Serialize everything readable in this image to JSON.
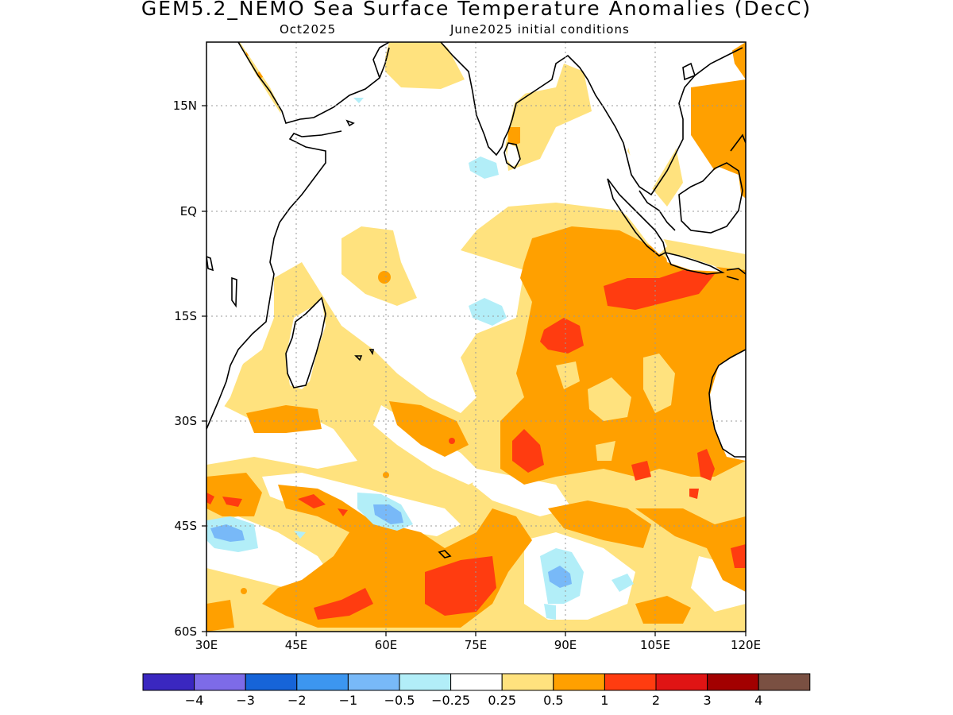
{
  "title": "GEM5.2_NEMO Sea Surface Temperature Anomalies (DecC)",
  "subtitle_month": "Oct2025",
  "subtitle_init": "June2025 initial conditions",
  "lat_labels": [
    "15N",
    "EQ",
    "15S",
    "30S",
    "45S",
    "60S"
  ],
  "lon_labels": [
    "30E",
    "45E",
    "60E",
    "75E",
    "90E",
    "105E",
    "120E"
  ],
  "colorbar": {
    "colors": [
      "#3a27c0",
      "#7d6be8",
      "#1664d8",
      "#3c96f0",
      "#78b9f8",
      "#b2eef8",
      "#ffffff",
      "#ffe27e",
      "#ffa000",
      "#ff3c10",
      "#e01414",
      "#a20000",
      "#7a5042"
    ],
    "labels": [
      "−4",
      "−3",
      "−2",
      "−1",
      "−0.5",
      "−0.25",
      "0.25",
      "0.5",
      "1",
      "2",
      "3",
      "4"
    ]
  }
}
